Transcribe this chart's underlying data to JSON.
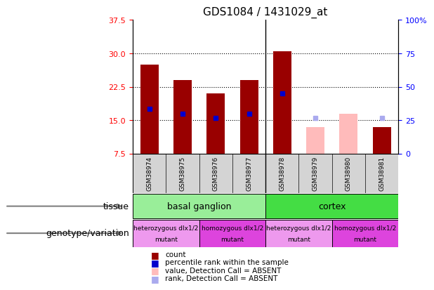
{
  "title": "GDS1084 / 1431029_at",
  "samples": [
    "GSM38974",
    "GSM38975",
    "GSM38976",
    "GSM38977",
    "GSM38978",
    "GSM38979",
    "GSM38980",
    "GSM38981"
  ],
  "ylim_left": [
    7.5,
    37.5
  ],
  "ylim_right": [
    0,
    100
  ],
  "left_ticks": [
    7.5,
    15.0,
    22.5,
    30.0,
    37.5
  ],
  "right_ticks": [
    0,
    25,
    50,
    75,
    100
  ],
  "right_tick_labels": [
    "0",
    "25",
    "50",
    "75",
    "100%"
  ],
  "bar_bottom": 7.5,
  "count_values": [
    27.5,
    24.0,
    21.0,
    24.0,
    30.5,
    null,
    null,
    13.5
  ],
  "count_absent_values": [
    null,
    null,
    null,
    null,
    null,
    13.5,
    16.5,
    null
  ],
  "percentile_values": [
    17.5,
    16.5,
    15.5,
    16.5,
    21.0,
    null,
    null,
    null
  ],
  "percentile_absent_values": [
    null,
    null,
    null,
    null,
    null,
    15.5,
    null,
    15.5
  ],
  "count_color": "#990000",
  "count_absent_color": "#ffbbbb",
  "percentile_color": "#0000cc",
  "percentile_absent_color": "#aaaaee",
  "bar_width": 0.55,
  "tissue_groups": [
    {
      "label": "basal ganglion",
      "start": 0,
      "end": 3,
      "color": "#99ee99"
    },
    {
      "label": "cortex",
      "start": 4,
      "end": 7,
      "color": "#44dd44"
    }
  ],
  "genotype_groups": [
    {
      "label": "heterozygous dlx1/2\nmutant",
      "start": 0,
      "end": 1,
      "color": "#ee99ee"
    },
    {
      "label": "homozygous dlx1/2\nmutant",
      "start": 2,
      "end": 3,
      "color": "#dd44dd"
    },
    {
      "label": "heterozygous dlx1/2\nmutant",
      "start": 4,
      "end": 5,
      "color": "#ee99ee"
    },
    {
      "label": "homozygous dlx1/2\nmutant",
      "start": 6,
      "end": 7,
      "color": "#dd44dd"
    }
  ],
  "legend_items": [
    {
      "label": "count",
      "color": "#990000"
    },
    {
      "label": "percentile rank within the sample",
      "color": "#0000cc"
    },
    {
      "label": "value, Detection Call = ABSENT",
      "color": "#ffbbbb"
    },
    {
      "label": "rank, Detection Call = ABSENT",
      "color": "#aaaaee"
    }
  ],
  "tissue_label": "tissue",
  "genotype_label": "genotype/variation"
}
